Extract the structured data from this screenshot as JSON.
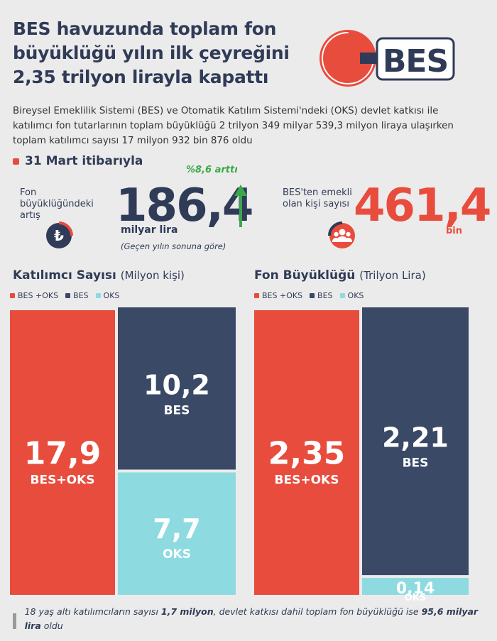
{
  "header": {
    "title": "BES havuzunda toplam fon büyüklüğü yılın ilk çeyreğini 2,35 trilyon lirayla kapattı",
    "subtitle": "Bireysel Emeklilik Sistemi (BES) ve Otomatik Katılım Sistemi'ndeki (OKS) devlet katkısı ile katılımcı fon tutarlarının toplam büyüklüğü 2 trilyon 349 milyar 539,3 milyon liraya ulaşırken toplam katılımcı sayısı 17 milyon 932 bin 876 oldu",
    "logo_text": "BES"
  },
  "date_label": "31 Mart itibarıyla",
  "fund_increase": {
    "label": "Fon büyüklüğündeki artış",
    "value": "186,4",
    "unit": "milyar lira",
    "note": "(Geçen yılın sonuna göre)",
    "change": "%8,6 arttı"
  },
  "retirees": {
    "label": "BES'ten emekli olan kişi sayısı",
    "value": "461,4",
    "unit": "bin"
  },
  "colors": {
    "bes_oks": "#e84c3d",
    "bes": "#394966",
    "oks": "#8ddbe0",
    "navy": "#2f3b57",
    "green": "#3aa84a"
  },
  "legend": [
    "BES +OKS",
    "BES",
    "OKS"
  ],
  "chart_data": [
    {
      "type": "bar",
      "title": "Katılımcı Sayısı",
      "unit": "(Milyon kişi)",
      "total": {
        "label": "BES+OKS",
        "value": 17.9,
        "display": "17,9"
      },
      "stack": [
        {
          "label": "BES",
          "value": 10.2,
          "display": "10,2"
        },
        {
          "label": "OKS",
          "value": 7.7,
          "display": "7,7"
        }
      ]
    },
    {
      "type": "bar",
      "title": "Fon Büyüklüğü",
      "unit": "(Trilyon Lira)",
      "total": {
        "label": "BES+OKS",
        "value": 2.35,
        "display": "2,35"
      },
      "stack": [
        {
          "label": "BES",
          "value": 2.21,
          "display": "2,21"
        },
        {
          "label": "OKS",
          "value": 0.14,
          "display": "0,14"
        }
      ]
    }
  ],
  "footnote": {
    "part1": "18 yaş altı katılımcıların sayısı ",
    "bold1": "1,7 milyon",
    "part2": ", devlet katkısı dahil toplam fon büyüklüğü ise ",
    "bold2": "95,6 milyar lira",
    "part3": " oldu"
  }
}
